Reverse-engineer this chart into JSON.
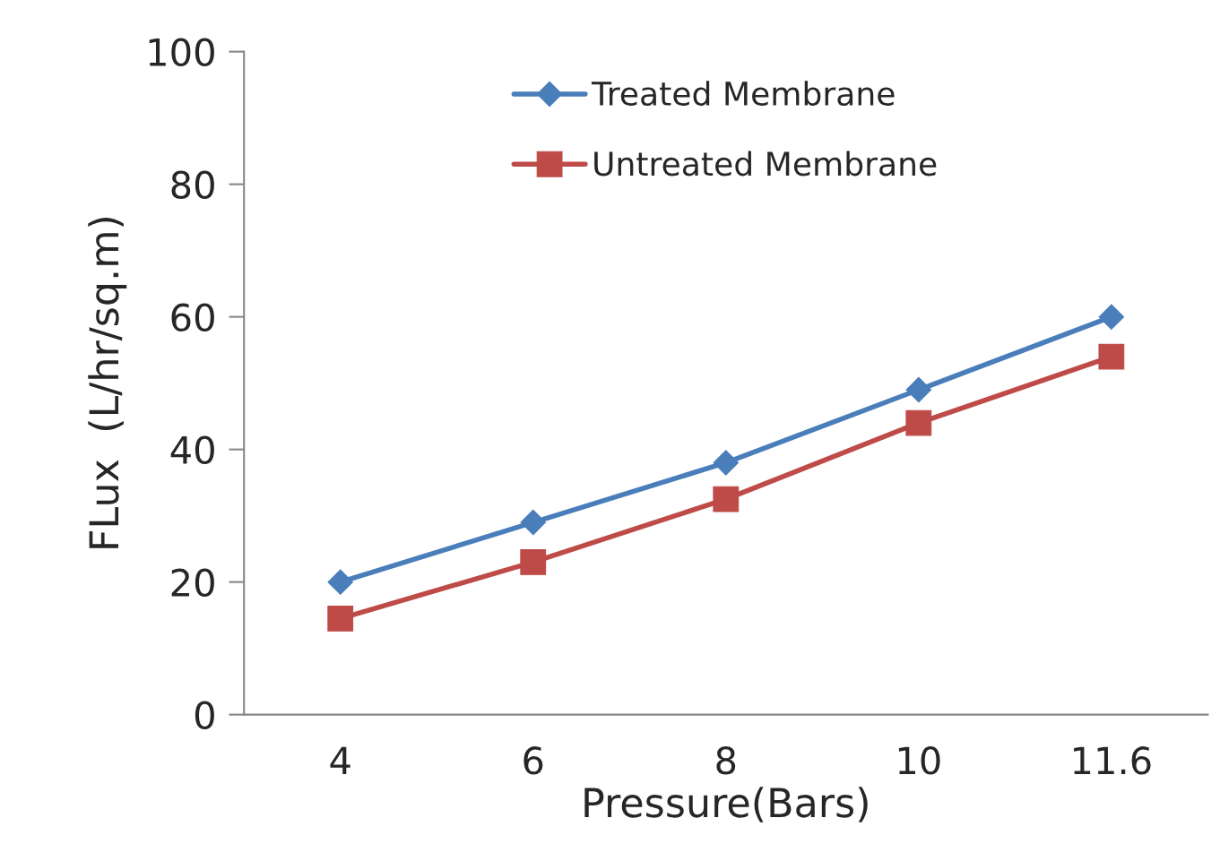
{
  "chart_data": {
    "type": "line",
    "xlabel": "Pressure(Bars)",
    "ylabel": "FLux  (L/hr/sq.m)",
    "categories": [
      "4",
      "6",
      "8",
      "10",
      "11.6"
    ],
    "series": [
      {
        "name": "Treated Membrane",
        "color": "#4a7ebb",
        "marker": "diamond",
        "values": [
          20,
          29,
          38,
          49,
          60
        ]
      },
      {
        "name": "Untreated Membrane",
        "color": "#be4b48",
        "marker": "square",
        "values": [
          14.5,
          23,
          32.5,
          44,
          54
        ]
      }
    ],
    "ylim": [
      0,
      100
    ],
    "yticks": [
      0,
      20,
      40,
      60,
      80,
      100
    ],
    "grid": false,
    "legend": "top"
  }
}
